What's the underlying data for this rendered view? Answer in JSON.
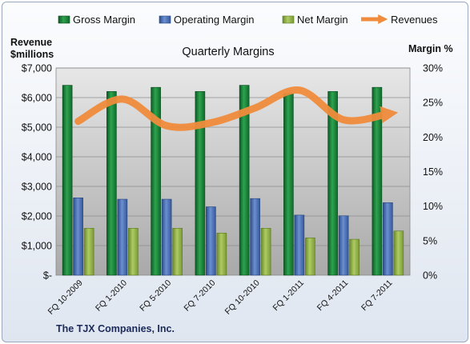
{
  "chart_data": {
    "type": "bar",
    "title": "Quarterly Margins",
    "footer": "The TJX Companies, Inc.",
    "left_axis": {
      "title_line1": "Revenue",
      "title_line2": "$millions",
      "ylim": [
        0,
        7000
      ],
      "tick_labels": [
        "$-",
        "$1,000",
        "$2,000",
        "$3,000",
        "$4,000",
        "$5,000",
        "$6,000",
        "$7,000"
      ]
    },
    "right_axis": {
      "title": "Margin %",
      "ylim": [
        0,
        30
      ],
      "tick_labels": [
        "0%",
        "5%",
        "10%",
        "15%",
        "20%",
        "25%",
        "30%"
      ]
    },
    "categories": [
      "FQ 10-2009",
      "FQ 1-2010",
      "FQ 5-2010",
      "FQ 7-2010",
      "FQ 10-2010",
      "FQ 1-2011",
      "FQ 4-2011",
      "FQ 7-2011"
    ],
    "series": [
      {
        "name": "Gross Margin",
        "type": "bar",
        "axis": "right",
        "color": "#1f8a3c",
        "values": [
          27.5,
          26.6,
          27.2,
          26.6,
          27.5,
          26.3,
          26.6,
          27.2
        ]
      },
      {
        "name": "Operating Margin",
        "type": "bar",
        "axis": "right",
        "color": "#4a72b8",
        "values": [
          11.2,
          11.0,
          11.0,
          9.9,
          11.1,
          8.7,
          8.6,
          10.5
        ]
      },
      {
        "name": "Net Margin",
        "type": "bar",
        "axis": "right",
        "color": "#8fb04a",
        "values": [
          6.8,
          6.8,
          6.8,
          6.1,
          6.8,
          5.4,
          5.2,
          6.4
        ]
      },
      {
        "name": "Revenues",
        "type": "line",
        "axis": "left",
        "color": "#f08c3c",
        "values": [
          5200,
          5950,
          5050,
          5150,
          5650,
          6250,
          5250,
          5450
        ]
      }
    ],
    "grid": true,
    "legend_position": "top"
  }
}
